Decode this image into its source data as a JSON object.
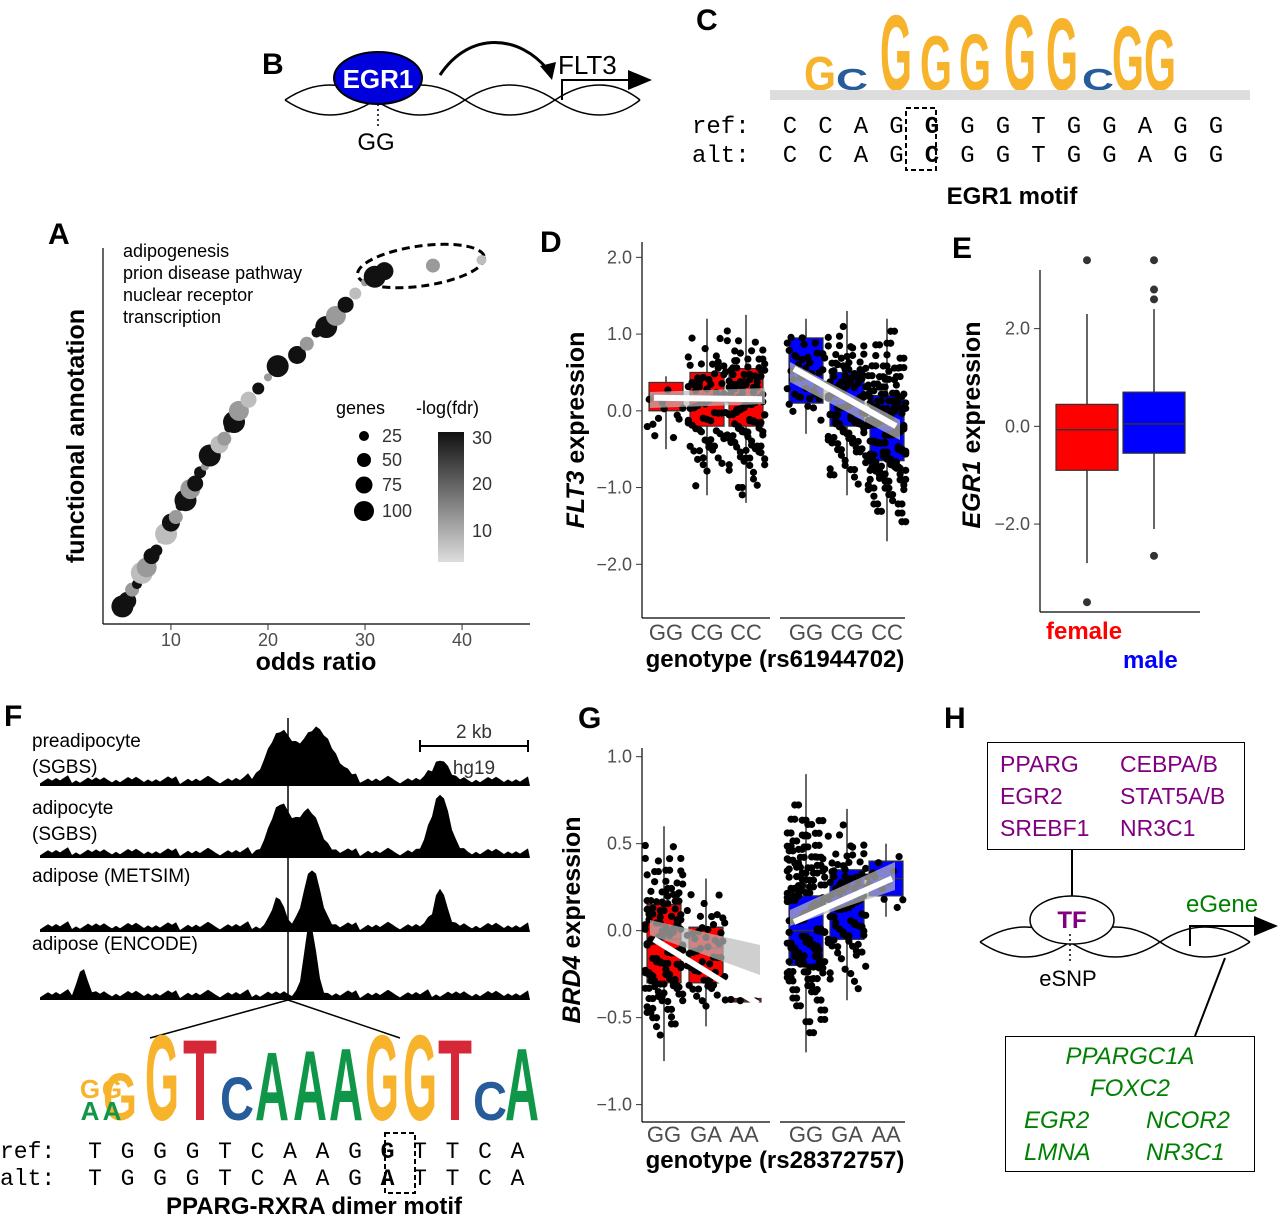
{
  "panel_labels": {
    "A": "A",
    "B": "B",
    "C": "C",
    "D": "D",
    "E": "E",
    "F": "F",
    "G": "G",
    "H": "H"
  },
  "panelB": {
    "tf": "EGR1",
    "gene": "FLT3",
    "allele": "GG"
  },
  "panelC": {
    "logo": [
      "G",
      "C",
      "G",
      "G",
      "G",
      "G",
      "G",
      "C",
      "G",
      "G"
    ],
    "ref_label": "ref:",
    "alt_label": "alt:",
    "ref_seq": [
      "C",
      "C",
      "A",
      "G",
      "G",
      "G",
      "G",
      "T",
      "G",
      "G",
      "A",
      "G",
      "G"
    ],
    "alt_seq": [
      "C",
      "C",
      "A",
      "G",
      "C",
      "G",
      "G",
      "T",
      "G",
      "G",
      "A",
      "G",
      "G"
    ],
    "caption": "EGR1 motif"
  },
  "panelA": {
    "annotation_lines": [
      "adipogenesis",
      "prion disease pathway",
      "nuclear receptor",
      "transcription"
    ],
    "legend_genes_title": "genes",
    "legend_genes": [
      "25",
      "50",
      "75",
      "100"
    ],
    "legend_fdr_title": "-log(fdr)",
    "legend_fdr": [
      "30",
      "20",
      "10"
    ],
    "colors": {
      "point_dark": "#111111",
      "point_light": "#bdbdbd"
    }
  },
  "chart_data": [
    {
      "type": "scatter",
      "id": "A",
      "xlabel": "odds ratio",
      "ylabel": "functional annotation",
      "xticks": [
        "10",
        "20",
        "30",
        "40"
      ],
      "xlim": [
        3,
        47
      ],
      "x": [
        4.5,
        5,
        5.5,
        6,
        6.5,
        7,
        7.5,
        8,
        8.5,
        9,
        9.5,
        10,
        10.5,
        11,
        11.5,
        12,
        12.5,
        13,
        13.5,
        14,
        15,
        15.5,
        16,
        16.5,
        17,
        18,
        19,
        20,
        21,
        23,
        24,
        25,
        26,
        27,
        28,
        29,
        30,
        31,
        32,
        37,
        42
      ],
      "rank": [
        0,
        1,
        2,
        4,
        5,
        7,
        8,
        10,
        11,
        13,
        14,
        16,
        17,
        19,
        20,
        22,
        23,
        25,
        26,
        28,
        30,
        31,
        33,
        34,
        36,
        38,
        40,
        42,
        44,
        46,
        48,
        50,
        51,
        53,
        55,
        57,
        59,
        60,
        61,
        62,
        63
      ]
    },
    {
      "type": "box",
      "id": "D",
      "xlabel": "genotype (rs61944702)",
      "ylabel": "FLT3 expression",
      "categories": [
        "GG",
        "CG",
        "CC",
        "GG",
        "CG",
        "CC"
      ],
      "yticks": [
        "2.0",
        "1.0",
        "0.0",
        "−1.0",
        "−2.0"
      ],
      "ylim": [
        -2.7,
        2.2
      ],
      "groups": [
        {
          "sex": "female",
          "color": "#ff0000",
          "q1": 0.0,
          "median": 0.2,
          "q3": 0.37,
          "lo": -0.5,
          "hi": 0.45
        },
        {
          "sex": "female",
          "color": "#ff0000",
          "q1": -0.2,
          "median": 0.2,
          "q3": 0.5,
          "lo": -1.1,
          "hi": 1.2
        },
        {
          "sex": "female",
          "color": "#ff0000",
          "q1": -0.2,
          "median": 0.15,
          "q3": 0.55,
          "lo": -1.2,
          "hi": 1.25
        },
        {
          "sex": "male",
          "color": "#0000ff",
          "q1": 0.1,
          "median": 0.5,
          "q3": 0.95,
          "lo": -0.3,
          "hi": 1.2
        },
        {
          "sex": "male",
          "color": "#0000ff",
          "q1": -0.2,
          "median": 0.15,
          "q3": 0.5,
          "lo": -1.1,
          "hi": 1.3
        },
        {
          "sex": "male",
          "color": "#0000ff",
          "q1": -0.65,
          "median": -0.2,
          "q3": 0.2,
          "lo": -1.7,
          "hi": 1.2
        }
      ]
    },
    {
      "type": "box",
      "id": "E",
      "ylabel": "EGR1 expression",
      "categories": [
        "female",
        "male"
      ],
      "yticks": [
        "2.0",
        "0.0",
        "−2.0"
      ],
      "ylim": [
        -3.8,
        3.2
      ],
      "groups": [
        {
          "color": "#ff0000",
          "q1": -0.9,
          "median": -0.07,
          "q3": 0.45,
          "lo": -2.8,
          "hi": 2.3
        },
        {
          "color": "#0000ff",
          "q1": -0.55,
          "median": 0.05,
          "q3": 0.7,
          "lo": -2.1,
          "hi": 2.4
        }
      ]
    },
    {
      "type": "box",
      "id": "G",
      "xlabel": "genotype (rs28372757)",
      "ylabel": "BRD4 expression",
      "categories": [
        "GG",
        "GA",
        "AA",
        "GG",
        "GA",
        "AA"
      ],
      "yticks": [
        "1.0",
        "0.5",
        "0.0",
        "−0.5",
        "−1.0"
      ],
      "ylim": [
        -1.1,
        1.05
      ],
      "groups": [
        {
          "color": "#ff0000",
          "q1": -0.3,
          "median": -0.05,
          "q3": 0.15,
          "lo": -0.75,
          "hi": 0.6
        },
        {
          "color": "#ff0000",
          "q1": -0.3,
          "median": -0.1,
          "q3": 0.02,
          "lo": -0.55,
          "hi": 0.3
        },
        {
          "color": "#ff0000",
          "q1": -0.41,
          "median": -0.4,
          "q3": -0.39,
          "lo": -0.41,
          "hi": -0.39
        },
        {
          "color": "#0000ff",
          "q1": -0.2,
          "median": 0.0,
          "q3": 0.2,
          "lo": -0.7,
          "hi": 0.9
        },
        {
          "color": "#0000ff",
          "q1": -0.05,
          "median": 0.2,
          "q3": 0.35,
          "lo": -0.4,
          "hi": 0.7
        },
        {
          "color": "#0000ff",
          "q1": 0.2,
          "median": 0.3,
          "q3": 0.4,
          "lo": 0.08,
          "hi": 0.5
        }
      ]
    }
  ],
  "panelE_legend": {
    "female": "female",
    "male": "male"
  },
  "panelF": {
    "tracks": [
      "preadipocyte",
      "(SGBS)",
      "adipocyte",
      "(SGBS)",
      "adipose (METSIM)",
      "adipose (ENCODE)"
    ],
    "scale": "2 kb",
    "build": "hg19",
    "logo": [
      "G",
      "G",
      "G",
      "T",
      "C",
      "A",
      "A",
      "A",
      "G",
      "G",
      "T",
      "C",
      "A"
    ],
    "logo_small": [
      "G",
      "G",
      "A",
      "A"
    ],
    "ref_label": "ref:",
    "alt_label": "alt:",
    "ref_seq": [
      "T",
      "G",
      "G",
      "G",
      "T",
      "C",
      "A",
      "A",
      "G",
      "G",
      "T",
      "T",
      "C",
      "A"
    ],
    "alt_seq": [
      "T",
      "G",
      "G",
      "G",
      "T",
      "C",
      "A",
      "A",
      "G",
      "A",
      "T",
      "T",
      "C",
      "A"
    ],
    "caption": "PPARG-RXRA dimer motif"
  },
  "panelH": {
    "tfs": [
      "PPARG",
      "CEBPA/B",
      "EGR2",
      "STAT5A/B",
      "SREBF1",
      "NR3C1"
    ],
    "tf": "TF",
    "egene": "eGene",
    "esnp": "eSNP",
    "genes": [
      "PPARGC1A",
      "FOXC2",
      "EGR2",
      "NCOR2",
      "LMNA",
      "NR3C1"
    ],
    "colors": {
      "tf": "#800080",
      "gene": "#008000"
    }
  }
}
